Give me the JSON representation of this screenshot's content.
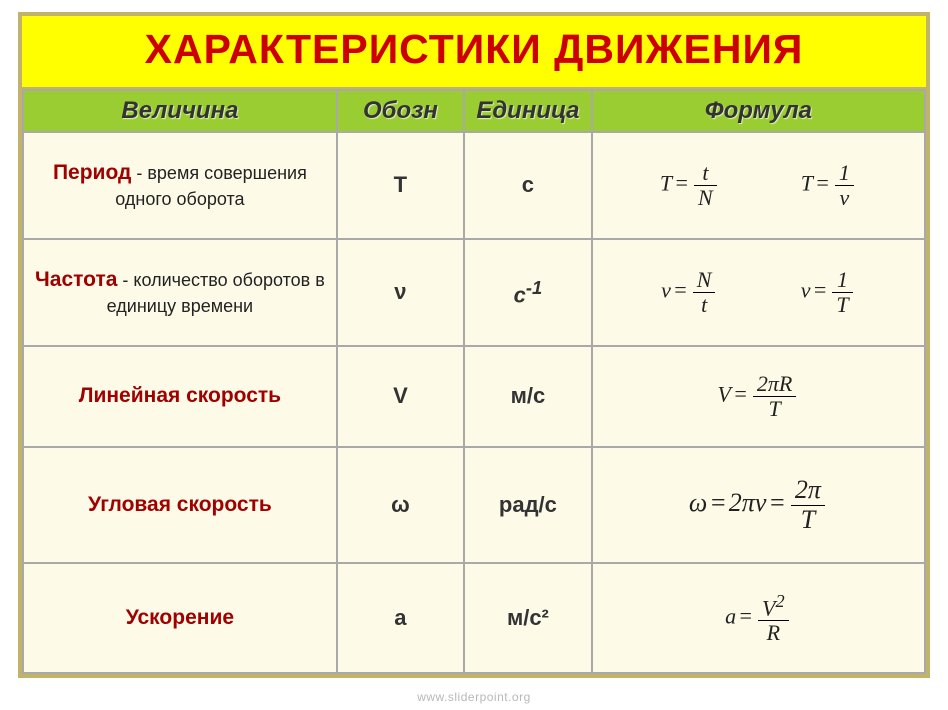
{
  "title": "ХАРАКТЕРИСТИКИ   ДВИЖЕНИЯ",
  "headers": {
    "quantity": "Величина",
    "symbol": "Обозн",
    "unit": "Единица",
    "formula": "Формула"
  },
  "rows": {
    "period": {
      "name": "Период",
      "desc": " - время совершения одного оборота",
      "symbol": "T",
      "unit": "с",
      "f1_lhs": "T",
      "f1_num": "t",
      "f1_den": "N",
      "f2_lhs": "T",
      "f2_num": "1",
      "f2_den": "ν"
    },
    "frequency": {
      "name": "Частота",
      "desc": " - количество оборотов в единицу времени",
      "symbol": "ν",
      "unit_base": "с",
      "unit_exp": "-1",
      "f1_lhs": "ν",
      "f1_num": "N",
      "f1_den": "t",
      "f2_lhs": "ν",
      "f2_num": "1",
      "f2_den": "T"
    },
    "linear": {
      "name": "Линейная  скорость",
      "symbol": "V",
      "unit": "м/с",
      "f_lhs": "V",
      "f_num": "2πR",
      "f_den": "T"
    },
    "angular": {
      "name": "Угловая  скорость",
      "symbol": "ω",
      "unit": "рад/с",
      "f_lhs": "ω",
      "f_mid": "2πν",
      "f_num": "2π",
      "f_den": "T"
    },
    "accel": {
      "name": "Ускорение",
      "symbol": "a",
      "unit": "м/с²",
      "f_lhs": "a",
      "f_num_base": "V",
      "f_num_exp": "2",
      "f_den": "R"
    }
  },
  "footer": "www.sliderpoint.org",
  "style": {
    "title_bg": "#ffff00",
    "title_color": "#cc0000",
    "header_bg": "#9acd32",
    "cell_bg": "#fdfbe8",
    "border_color": "#a9a9a9",
    "frame_border": "#c2b36a",
    "name_color": "#a00000"
  }
}
